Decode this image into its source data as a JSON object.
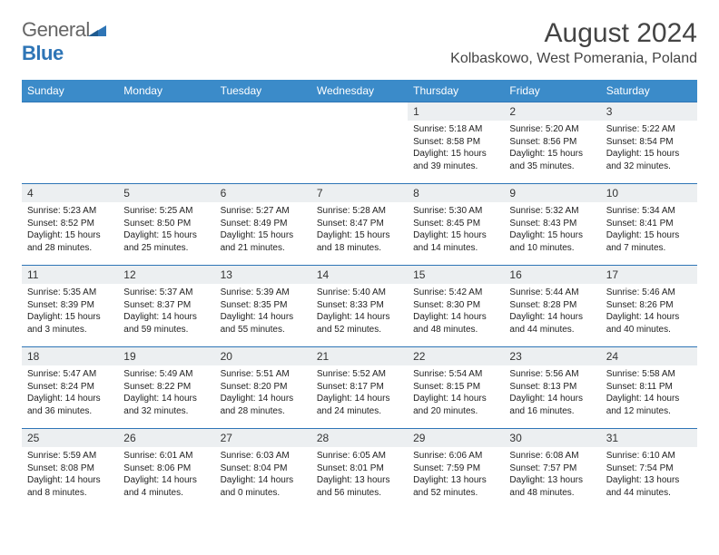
{
  "logo": {
    "text1": "General",
    "text2": "Blue"
  },
  "title": "August 2024",
  "location": "Kolbaskowo, West Pomerania, Poland",
  "colors": {
    "header_bg": "#3b8bc9",
    "border": "#2e75b6",
    "daynum_bg": "#eceff1",
    "text": "#333333",
    "logo_blue": "#2e75b6"
  },
  "weekdays": [
    "Sunday",
    "Monday",
    "Tuesday",
    "Wednesday",
    "Thursday",
    "Friday",
    "Saturday"
  ],
  "weeks": [
    [
      null,
      null,
      null,
      null,
      {
        "n": "1",
        "sr": "5:18 AM",
        "ss": "8:58 PM",
        "dl": "15 hours and 39 minutes."
      },
      {
        "n": "2",
        "sr": "5:20 AM",
        "ss": "8:56 PM",
        "dl": "15 hours and 35 minutes."
      },
      {
        "n": "3",
        "sr": "5:22 AM",
        "ss": "8:54 PM",
        "dl": "15 hours and 32 minutes."
      }
    ],
    [
      {
        "n": "4",
        "sr": "5:23 AM",
        "ss": "8:52 PM",
        "dl": "15 hours and 28 minutes."
      },
      {
        "n": "5",
        "sr": "5:25 AM",
        "ss": "8:50 PM",
        "dl": "15 hours and 25 minutes."
      },
      {
        "n": "6",
        "sr": "5:27 AM",
        "ss": "8:49 PM",
        "dl": "15 hours and 21 minutes."
      },
      {
        "n": "7",
        "sr": "5:28 AM",
        "ss": "8:47 PM",
        "dl": "15 hours and 18 minutes."
      },
      {
        "n": "8",
        "sr": "5:30 AM",
        "ss": "8:45 PM",
        "dl": "15 hours and 14 minutes."
      },
      {
        "n": "9",
        "sr": "5:32 AM",
        "ss": "8:43 PM",
        "dl": "15 hours and 10 minutes."
      },
      {
        "n": "10",
        "sr": "5:34 AM",
        "ss": "8:41 PM",
        "dl": "15 hours and 7 minutes."
      }
    ],
    [
      {
        "n": "11",
        "sr": "5:35 AM",
        "ss": "8:39 PM",
        "dl": "15 hours and 3 minutes."
      },
      {
        "n": "12",
        "sr": "5:37 AM",
        "ss": "8:37 PM",
        "dl": "14 hours and 59 minutes."
      },
      {
        "n": "13",
        "sr": "5:39 AM",
        "ss": "8:35 PM",
        "dl": "14 hours and 55 minutes."
      },
      {
        "n": "14",
        "sr": "5:40 AM",
        "ss": "8:33 PM",
        "dl": "14 hours and 52 minutes."
      },
      {
        "n": "15",
        "sr": "5:42 AM",
        "ss": "8:30 PM",
        "dl": "14 hours and 48 minutes."
      },
      {
        "n": "16",
        "sr": "5:44 AM",
        "ss": "8:28 PM",
        "dl": "14 hours and 44 minutes."
      },
      {
        "n": "17",
        "sr": "5:46 AM",
        "ss": "8:26 PM",
        "dl": "14 hours and 40 minutes."
      }
    ],
    [
      {
        "n": "18",
        "sr": "5:47 AM",
        "ss": "8:24 PM",
        "dl": "14 hours and 36 minutes."
      },
      {
        "n": "19",
        "sr": "5:49 AM",
        "ss": "8:22 PM",
        "dl": "14 hours and 32 minutes."
      },
      {
        "n": "20",
        "sr": "5:51 AM",
        "ss": "8:20 PM",
        "dl": "14 hours and 28 minutes."
      },
      {
        "n": "21",
        "sr": "5:52 AM",
        "ss": "8:17 PM",
        "dl": "14 hours and 24 minutes."
      },
      {
        "n": "22",
        "sr": "5:54 AM",
        "ss": "8:15 PM",
        "dl": "14 hours and 20 minutes."
      },
      {
        "n": "23",
        "sr": "5:56 AM",
        "ss": "8:13 PM",
        "dl": "14 hours and 16 minutes."
      },
      {
        "n": "24",
        "sr": "5:58 AM",
        "ss": "8:11 PM",
        "dl": "14 hours and 12 minutes."
      }
    ],
    [
      {
        "n": "25",
        "sr": "5:59 AM",
        "ss": "8:08 PM",
        "dl": "14 hours and 8 minutes."
      },
      {
        "n": "26",
        "sr": "6:01 AM",
        "ss": "8:06 PM",
        "dl": "14 hours and 4 minutes."
      },
      {
        "n": "27",
        "sr": "6:03 AM",
        "ss": "8:04 PM",
        "dl": "14 hours and 0 minutes."
      },
      {
        "n": "28",
        "sr": "6:05 AM",
        "ss": "8:01 PM",
        "dl": "13 hours and 56 minutes."
      },
      {
        "n": "29",
        "sr": "6:06 AM",
        "ss": "7:59 PM",
        "dl": "13 hours and 52 minutes."
      },
      {
        "n": "30",
        "sr": "6:08 AM",
        "ss": "7:57 PM",
        "dl": "13 hours and 48 minutes."
      },
      {
        "n": "31",
        "sr": "6:10 AM",
        "ss": "7:54 PM",
        "dl": "13 hours and 44 minutes."
      }
    ]
  ],
  "labels": {
    "sunrise": "Sunrise:",
    "sunset": "Sunset:",
    "daylight": "Daylight:"
  }
}
